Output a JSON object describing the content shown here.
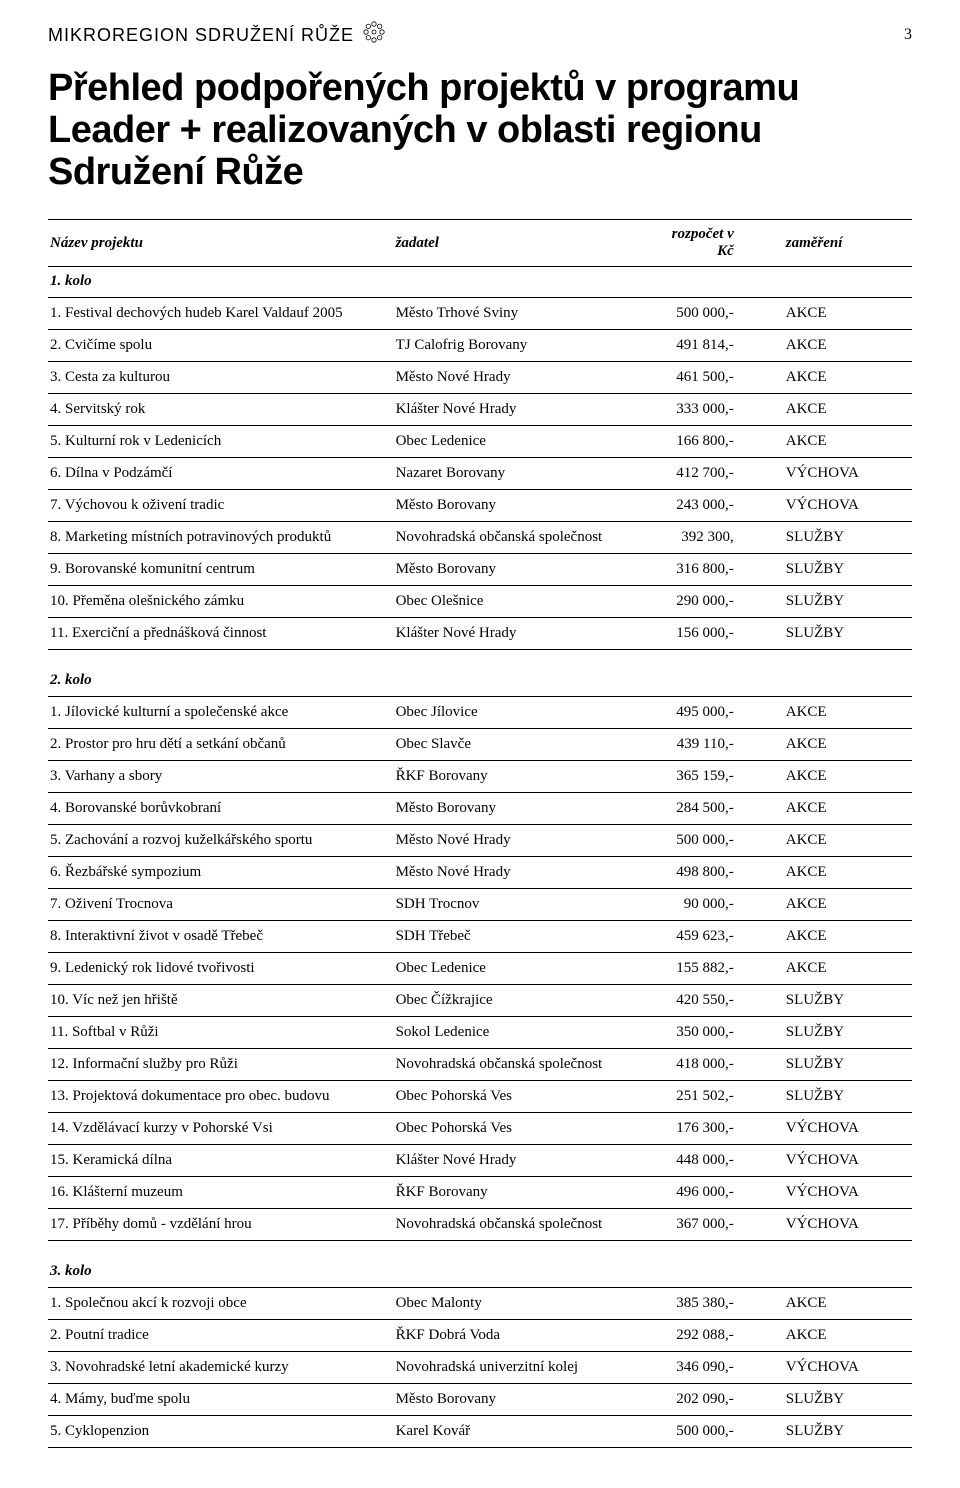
{
  "header": {
    "title": "MIKROREGION SDRUŽENÍ RŮŽE",
    "pagenum": "3"
  },
  "main_title": "Přehled podpořených projektů v programu Leader + realizovaných v oblasti regionu Sdružení Růže",
  "columns": [
    "Název projektu",
    "žadatel",
    "rozpočet v Kč",
    "zaměření"
  ],
  "sections": [
    {
      "title": "1. kolo",
      "rows": [
        [
          "1. Festival dechových hudeb Karel Valdauf 2005",
          "Město Trhové Sviny",
          "500 000,-",
          "AKCE"
        ],
        [
          "2. Cvičíme spolu",
          "TJ Calofrig Borovany",
          "491 814,-",
          "AKCE"
        ],
        [
          "3. Cesta za kulturou",
          "Město Nové Hrady",
          "461 500,-",
          "AKCE"
        ],
        [
          "4. Servitský rok",
          "Klášter Nové Hrady",
          "333 000,-",
          "AKCE"
        ],
        [
          "5. Kulturní rok v Ledenicích",
          "Obec Ledenice",
          "166 800,-",
          "AKCE"
        ],
        [
          "6. Dílna v Podzámčí",
          "Nazaret Borovany",
          "412 700,-",
          "VÝCHOVA"
        ],
        [
          "7. Výchovou k oživení tradic",
          "Město Borovany",
          "243 000,-",
          "VÝCHOVA"
        ],
        [
          "8. Marketing místních potravinových produktů",
          "Novohradská občanská společnost",
          "392 300,",
          "SLUŽBY"
        ],
        [
          "9. Borovanské komunitní centrum",
          "Město Borovany",
          "316 800,-",
          "SLUŽBY"
        ],
        [
          "10. Přeměna olešnického zámku",
          "Obec Olešnice",
          "290 000,-",
          "SLUŽBY"
        ],
        [
          "11. Exerciční a přednášková činnost",
          "Klášter Nové Hrady",
          "156 000,-",
          "SLUŽBY"
        ]
      ]
    },
    {
      "title": "2. kolo",
      "rows": [
        [
          "1. Jílovické kulturní a společenské akce",
          "Obec Jílovice",
          "495 000,-",
          "AKCE"
        ],
        [
          "2. Prostor pro hru dětí a setkání občanů",
          "Obec Slavče",
          "439 110,-",
          "AKCE"
        ],
        [
          "3. Varhany a sbory",
          "ŘKF Borovany",
          "365 159,-",
          "AKCE"
        ],
        [
          "4. Borovanské borůvkobraní",
          "Město Borovany",
          "284 500,-",
          "AKCE"
        ],
        [
          "5. Zachování a rozvoj kuželkářského sportu",
          "Město Nové Hrady",
          "500 000,-",
          "AKCE"
        ],
        [
          "6. Řezbářské sympozium",
          "Město Nové Hrady",
          "498 800,-",
          "AKCE"
        ],
        [
          "7. Oživení Trocnova",
          "SDH Trocnov",
          "90 000,-",
          "AKCE"
        ],
        [
          "8. Interaktivní život v osadě Třebeč",
          "SDH Třebeč",
          "459 623,-",
          "AKCE"
        ],
        [
          "9. Ledenický rok lidové tvořivosti",
          "Obec Ledenice",
          "155 882,-",
          "AKCE"
        ],
        [
          "10. Víc než jen hřiště",
          "Obec Čížkrajice",
          "420 550,-",
          "SLUŽBY"
        ],
        [
          "11. Softbal v Růži",
          "Sokol Ledenice",
          "350 000,-",
          "SLUŽBY"
        ],
        [
          "12. Informační služby pro Růži",
          "Novohradská občanská společnost",
          "418 000,-",
          "SLUŽBY"
        ],
        [
          "13. Projektová dokumentace pro obec. budovu",
          "Obec Pohorská Ves",
          "251 502,-",
          "SLUŽBY"
        ],
        [
          "14. Vzdělávací kurzy v Pohorské Vsi",
          "Obec Pohorská Ves",
          "176 300,-",
          "VÝCHOVA"
        ],
        [
          "15. Keramická dílna",
          "Klášter Nové Hrady",
          "448 000,-",
          "VÝCHOVA"
        ],
        [
          "16. Klášterní muzeum",
          "ŘKF Borovany",
          "496 000,-",
          "VÝCHOVA"
        ],
        [
          "17. Příběhy domů  - vzdělání hrou",
          "Novohradská občanská společnost",
          "367 000,-",
          "VÝCHOVA"
        ]
      ]
    },
    {
      "title": "3. kolo",
      "rows": [
        [
          "1. Společnou akcí k rozvoji obce",
          "Obec Malonty",
          "385 380,-",
          "AKCE"
        ],
        [
          "2. Poutní tradice",
          "ŘKF Dobrá Voda",
          "292 088,-",
          "AKCE"
        ],
        [
          "3. Novohradské letní akademické kurzy",
          "Novohradská univerzitní kolej",
          "346 090,-",
          "VÝCHOVA"
        ],
        [
          "4. Mámy, buďme spolu",
          "Město Borovany",
          "202 090,-",
          "SLUŽBY"
        ],
        [
          "5. Cyklopenzion",
          "Karel Kovář",
          "500 000,-",
          "SLUŽBY"
        ]
      ]
    }
  ]
}
